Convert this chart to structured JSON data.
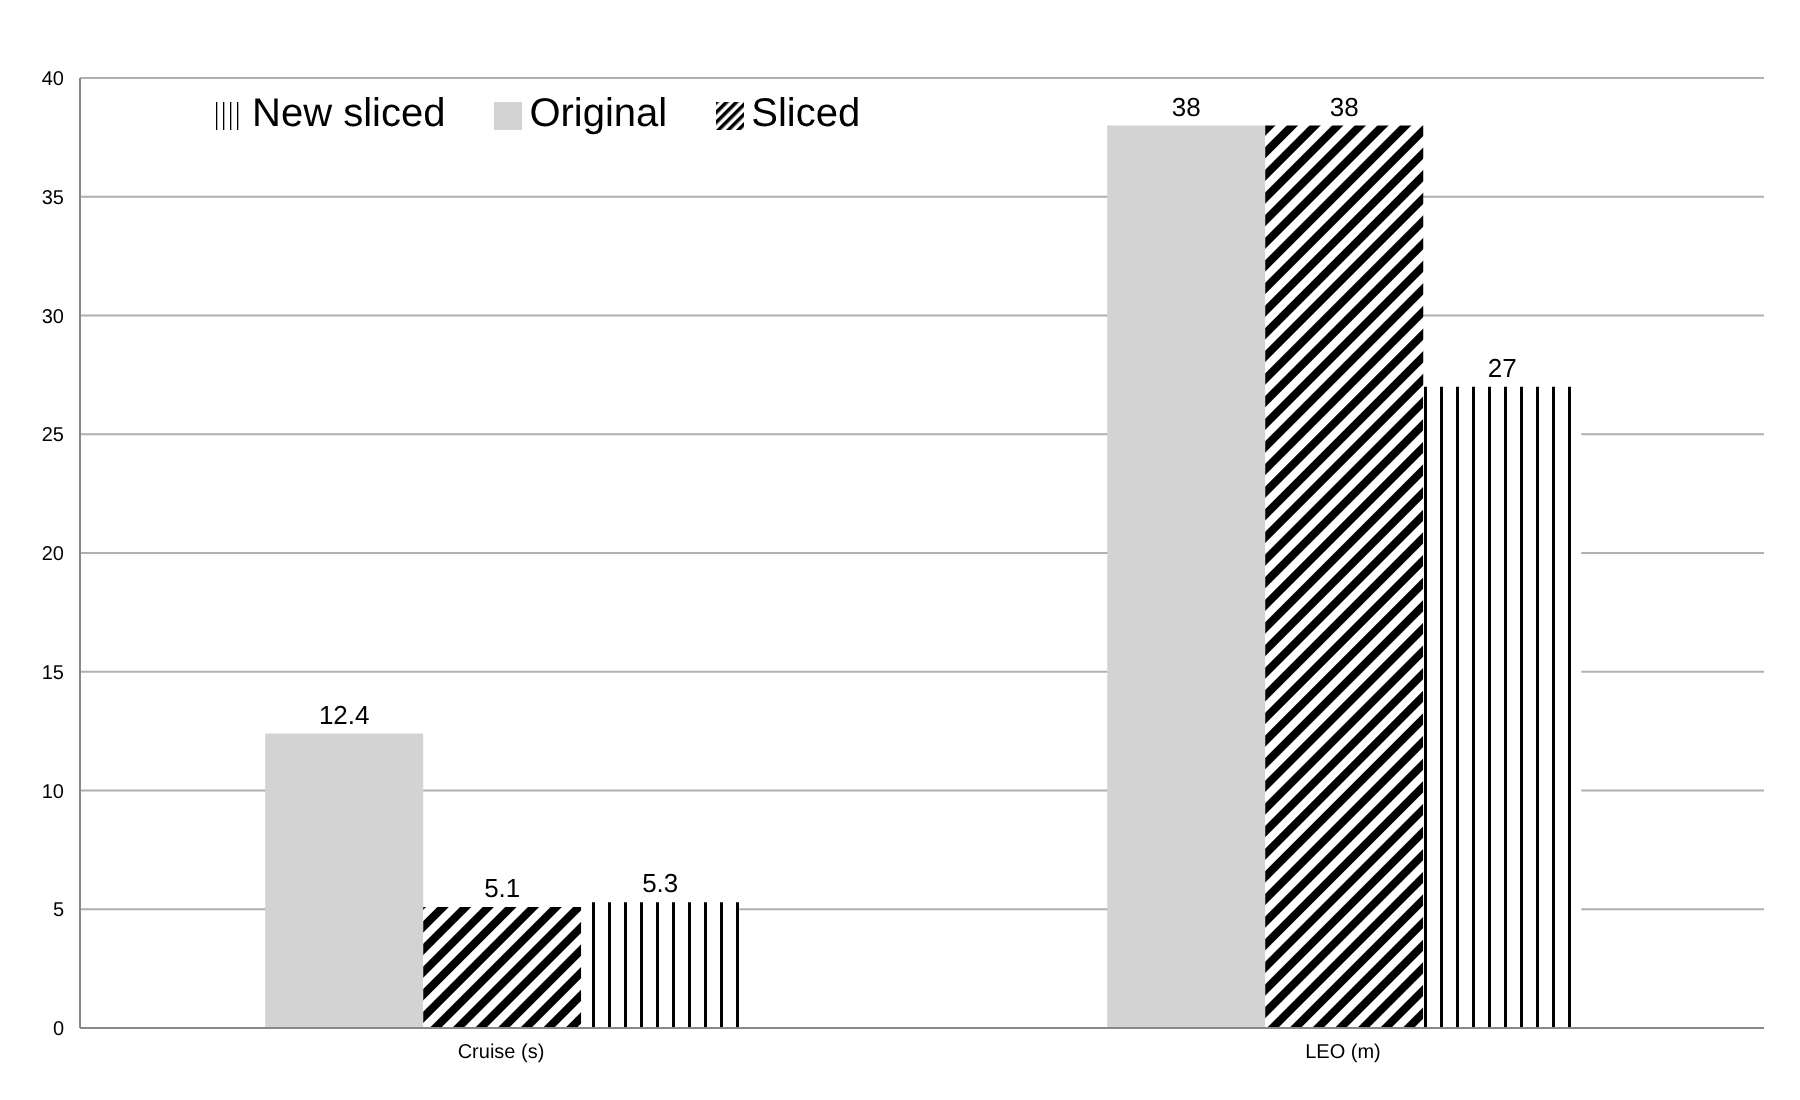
{
  "chart_data": {
    "type": "bar",
    "categories": [
      "Cruise (s)",
      "LEO (m)"
    ],
    "series": [
      {
        "name": "Original",
        "color": "#d3d3d3",
        "values": [
          12.4,
          38
        ]
      },
      {
        "name": "Sliced",
        "color": "#000000",
        "values": [
          5.1,
          38
        ]
      },
      {
        "name": "New sliced",
        "color": "#000000",
        "values": [
          5.3,
          27
        ]
      }
    ],
    "ylim": [
      0,
      40
    ],
    "yticks": [
      0,
      5,
      10,
      15,
      20,
      25,
      30,
      35,
      40
    ],
    "grid": "y",
    "legend": "top left",
    "data_labels": true
  }
}
